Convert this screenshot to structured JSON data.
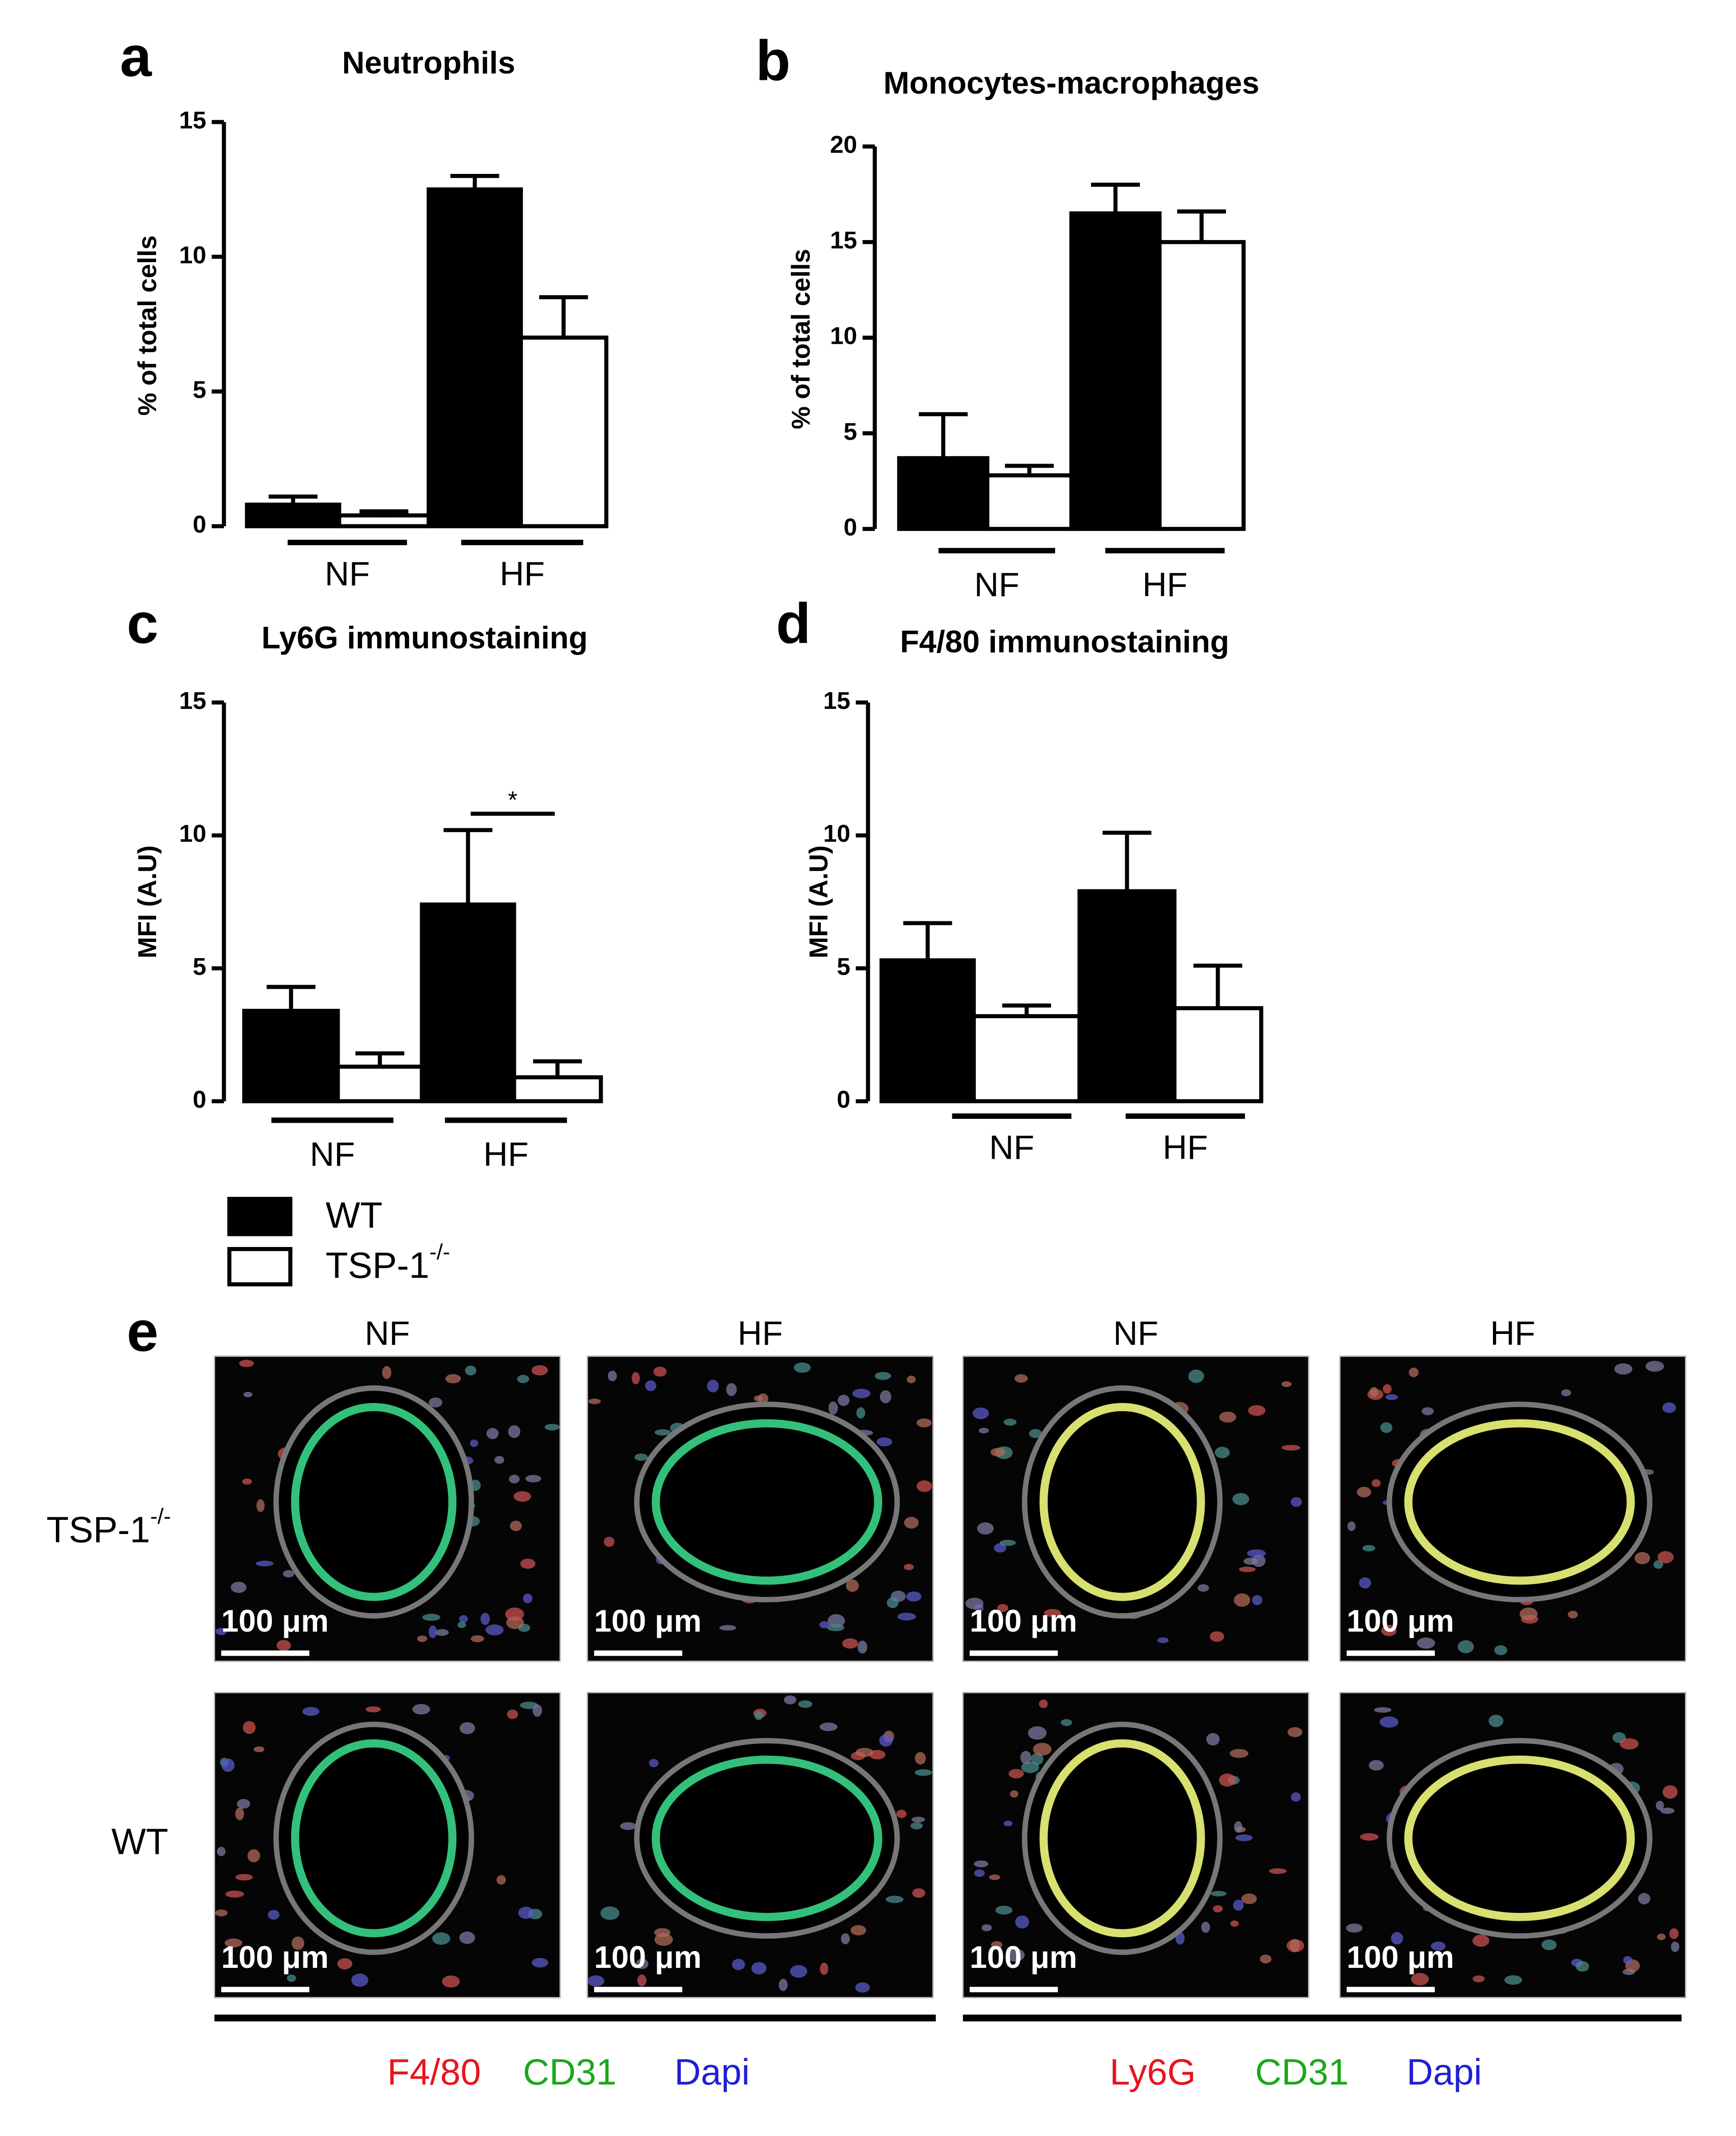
{
  "chart_data": [
    {
      "panel": "a",
      "type": "bar",
      "title": "Neutrophils",
      "y_label": "% of total cells",
      "categories": [
        "NF",
        "HF"
      ],
      "ylim": [
        0,
        15
      ],
      "yticks": [
        0,
        5,
        10,
        15
      ],
      "series": [
        {
          "color": "#000000",
          "values": [
            0.8,
            12.5
          ],
          "errors": [
            0.3,
            0.5
          ]
        },
        {
          "color": "#ffffff",
          "values": [
            0.4,
            7.0
          ],
          "errors": [
            0.15,
            1.5
          ]
        }
      ]
    },
    {
      "panel": "b",
      "type": "bar",
      "title": "Monocytes-macrophages",
      "y_label": "% of total cells",
      "categories": [
        "NF",
        "HF"
      ],
      "ylim": [
        0,
        20
      ],
      "yticks": [
        0,
        5,
        10,
        15,
        20
      ],
      "series": [
        {
          "color": "#000000",
          "values": [
            3.7,
            16.5
          ],
          "errors": [
            2.3,
            1.5
          ]
        },
        {
          "color": "#ffffff",
          "values": [
            2.8,
            15.0
          ],
          "errors": [
            0.5,
            1.6
          ]
        }
      ]
    },
    {
      "panel": "c",
      "type": "bar",
      "title": "Ly6G immunostaining",
      "y_label": "MFI (A.U)",
      "categories": [
        "NF",
        "HF"
      ],
      "ylim": [
        0,
        15
      ],
      "yticks": [
        0,
        5,
        10,
        15
      ],
      "significance": "*",
      "series": [
        {
          "color": "#000000",
          "values": [
            3.4,
            7.4
          ],
          "errors": [
            0.9,
            2.8
          ]
        },
        {
          "color": "#ffffff",
          "values": [
            1.3,
            0.9
          ],
          "errors": [
            0.5,
            0.6
          ]
        }
      ]
    },
    {
      "panel": "d",
      "type": "bar",
      "title": "F4/80 immunostaining",
      "y_label": "MFI (A.U)",
      "categories": [
        "NF",
        "HF"
      ],
      "ylim": [
        0,
        15
      ],
      "yticks": [
        0,
        5,
        10,
        15
      ],
      "series": [
        {
          "color": "#000000",
          "values": [
            5.3,
            7.9
          ],
          "errors": [
            1.4,
            2.2
          ]
        },
        {
          "color": "#ffffff",
          "values": [
            3.2,
            3.5
          ],
          "errors": [
            0.4,
            1.6
          ]
        }
      ]
    }
  ],
  "legend": [
    {
      "label": "WT",
      "color": "#000000"
    },
    {
      "label": "TSP-1",
      "superscript": "-/-",
      "color": "#ffffff"
    }
  ],
  "panel_e": {
    "panel": "e",
    "column_labels": [
      "NF",
      "HF",
      "NF",
      "HF"
    ],
    "row_labels": [
      {
        "label": "TSP-1",
        "superscript": "-/-"
      },
      {
        "label": "WT"
      }
    ],
    "scale_bar": "100 μm",
    "stains": [
      [
        {
          "text": "F4/80",
          "color": "#e8141c"
        },
        {
          "text": "CD31",
          "color": "#1aa81a"
        },
        {
          "text": "Dapi",
          "color": "#1f1fd6"
        }
      ],
      [
        {
          "text": "Ly6G",
          "color": "#e8141c"
        },
        {
          "text": "CD31",
          "color": "#1aa81a"
        },
        {
          "text": "Dapi",
          "color": "#1f1fd6"
        }
      ]
    ]
  }
}
